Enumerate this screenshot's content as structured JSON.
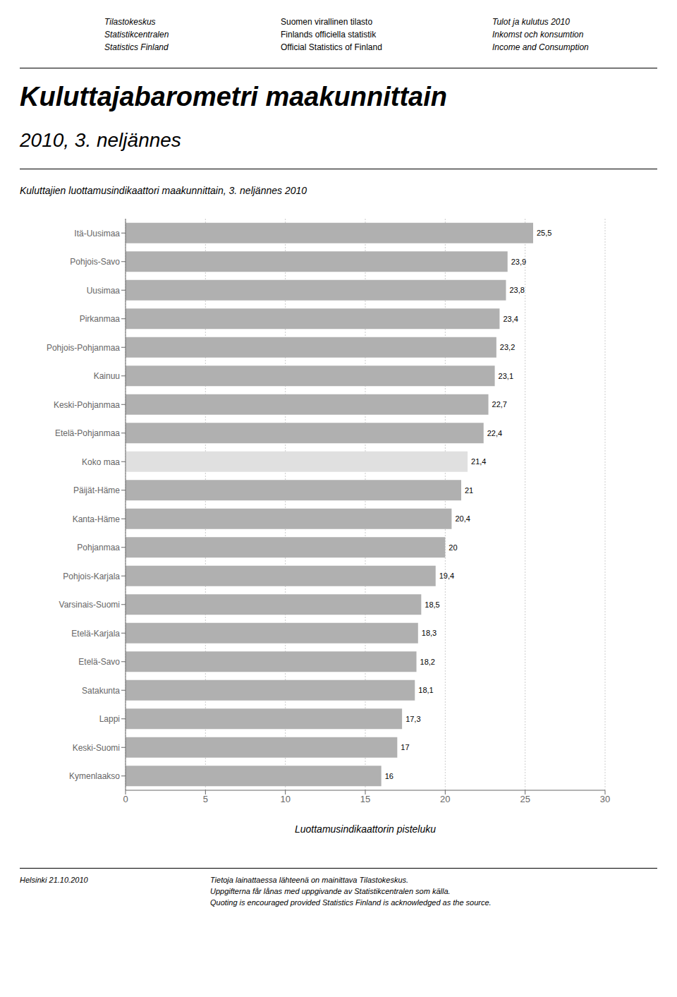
{
  "chart_data": {
    "type": "bar",
    "orientation": "horizontal",
    "title": "Kuluttajabarometri maakunnittain",
    "subtitle": "2010, 3. neljännes",
    "chart_subtitle": "Kuluttajien luottamusindikaattori maakunnittain, 3. neljännes 2010",
    "xlabel": "Luottamusindikaattorin pisteluku",
    "header_left": [
      "Tilastokeskus",
      "Statistikcentralen",
      "Statistics Finland"
    ],
    "header_mid": [
      "Suomen virallinen tilasto",
      "Finlands officiella statistik",
      "Official Statistics of Finland"
    ],
    "header_right": [
      "Tulot ja kulutus 2010",
      "Inkomst och konsumtion",
      "Income and Consumption"
    ],
    "footer_left": "Helsinki 21.10.2010",
    "footer_right": [
      "Tietoja lainattaessa lähteenä on mainittava Tilastokeskus.",
      "Uppgifterna får lånas med uppgivande av Statistikcentralen som källa.",
      "Quoting is encouraged provided Statistics Finland is acknowledged as the source."
    ],
    "categories": [
      "Itä-Uusimaa",
      "Pohjois-Savo",
      "Uusimaa",
      "Pirkanmaa",
      "Pohjois-Pohjanmaa",
      "Kainuu",
      "Keski-Pohjanmaa",
      "Etelä-Pohjanmaa",
      "Koko maa",
      "Päijät-Häme",
      "Kanta-Häme",
      "Pohjanmaa",
      "Pohjois-Karjala",
      "Varsinais-Suomi",
      "Etelä-Karjala",
      "Etelä-Savo",
      "Satakunta",
      "Lappi",
      "Keski-Suomi",
      "Kymenlaakso"
    ],
    "values": [
      25.5,
      23.9,
      23.8,
      23.4,
      23.2,
      23.1,
      22.7,
      22.4,
      21.4,
      21.0,
      20.4,
      20.0,
      19.4,
      18.5,
      18.3,
      18.2,
      18.1,
      17.3,
      17.0,
      16.0
    ],
    "value_labels": [
      "25,5",
      "23,9",
      "23,8",
      "23,4",
      "23,2",
      "23,1",
      "22,7",
      "22,4",
      "21,4",
      "21",
      "20,4",
      "20",
      "19,4",
      "18,5",
      "18,3",
      "18,2",
      "18,1",
      "17,3",
      "17",
      "16"
    ],
    "data_labels": true,
    "colors": [
      "#b0b0b0",
      "#b0b0b0",
      "#b0b0b0",
      "#b0b0b0",
      "#b0b0b0",
      "#b0b0b0",
      "#b0b0b0",
      "#b0b0b0",
      "#e0e0e0",
      "#b0b0b0",
      "#b0b0b0",
      "#b0b0b0",
      "#b0b0b0",
      "#b0b0b0",
      "#b0b0b0",
      "#b0b0b0",
      "#b0b0b0",
      "#b0b0b0",
      "#b0b0b0",
      "#b0b0b0"
    ],
    "xlim": [
      0,
      30
    ],
    "xticks": [
      0,
      5,
      10,
      15,
      20,
      25,
      30
    ],
    "grid": true
  }
}
